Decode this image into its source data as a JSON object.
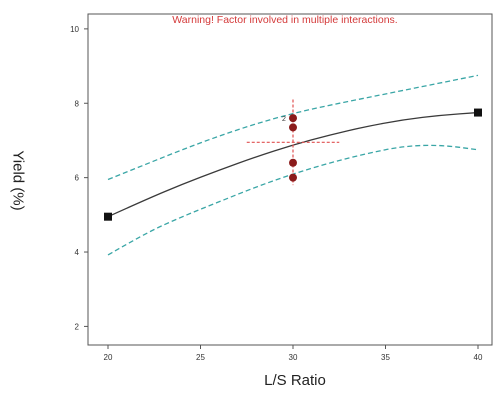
{
  "chart_data": {
    "type": "line",
    "annotation": "Warning! Factor involved in multiple interactions.",
    "xlabel": "L/S Ratio",
    "ylabel": "Yield (%)",
    "xlim": [
      20,
      40
    ],
    "ylim": [
      1.5,
      10.4
    ],
    "x_ticks": [
      "20",
      "25",
      "30",
      "35",
      "40"
    ],
    "y_ticks": [
      "2",
      "4",
      "6",
      "8",
      "10"
    ],
    "grid": false,
    "series": [
      {
        "style": "solid",
        "color": "#3a3a3a",
        "x": [
          20,
          22,
          24,
          26,
          28,
          30,
          32,
          34,
          36,
          38,
          40
        ],
        "y": [
          4.95,
          5.4,
          5.82,
          6.2,
          6.56,
          6.88,
          7.15,
          7.38,
          7.56,
          7.68,
          7.75
        ]
      },
      {
        "style": "dashed",
        "color": "#3aa6a6",
        "x": [
          20,
          22,
          24,
          26,
          28,
          30,
          32,
          34,
          36,
          38,
          40
        ],
        "y": [
          5.95,
          6.35,
          6.75,
          7.12,
          7.45,
          7.73,
          7.95,
          8.15,
          8.35,
          8.55,
          8.75
        ]
      },
      {
        "style": "dashed",
        "color": "#3aa6a6",
        "x": [
          20,
          22,
          24,
          26,
          28,
          30,
          32,
          34,
          36,
          38,
          40
        ],
        "y": [
          3.92,
          4.5,
          4.95,
          5.35,
          5.75,
          6.1,
          6.4,
          6.65,
          6.85,
          6.88,
          6.75
        ]
      }
    ],
    "design_points": [
      {
        "x": 20,
        "y": 4.95,
        "marker": "square",
        "color": "#111111"
      },
      {
        "x": 40,
        "y": 7.75,
        "marker": "square",
        "color": "#111111"
      },
      {
        "x": 30,
        "y": 7.6,
        "marker": "circle",
        "color": "#8b1c1c",
        "label": "2"
      },
      {
        "x": 30,
        "y": 7.35,
        "marker": "circle",
        "color": "#8b1c1c"
      },
      {
        "x": 30,
        "y": 6.4,
        "marker": "circle",
        "color": "#8b1c1c"
      },
      {
        "x": 30,
        "y": 6.0,
        "marker": "circle",
        "color": "#8b1c1c"
      }
    ],
    "crosshair": {
      "x": 30,
      "y": 6.95,
      "x_span": [
        27.5,
        32.5
      ],
      "y_span": [
        5.8,
        8.1
      ],
      "color": "#e05050"
    }
  }
}
